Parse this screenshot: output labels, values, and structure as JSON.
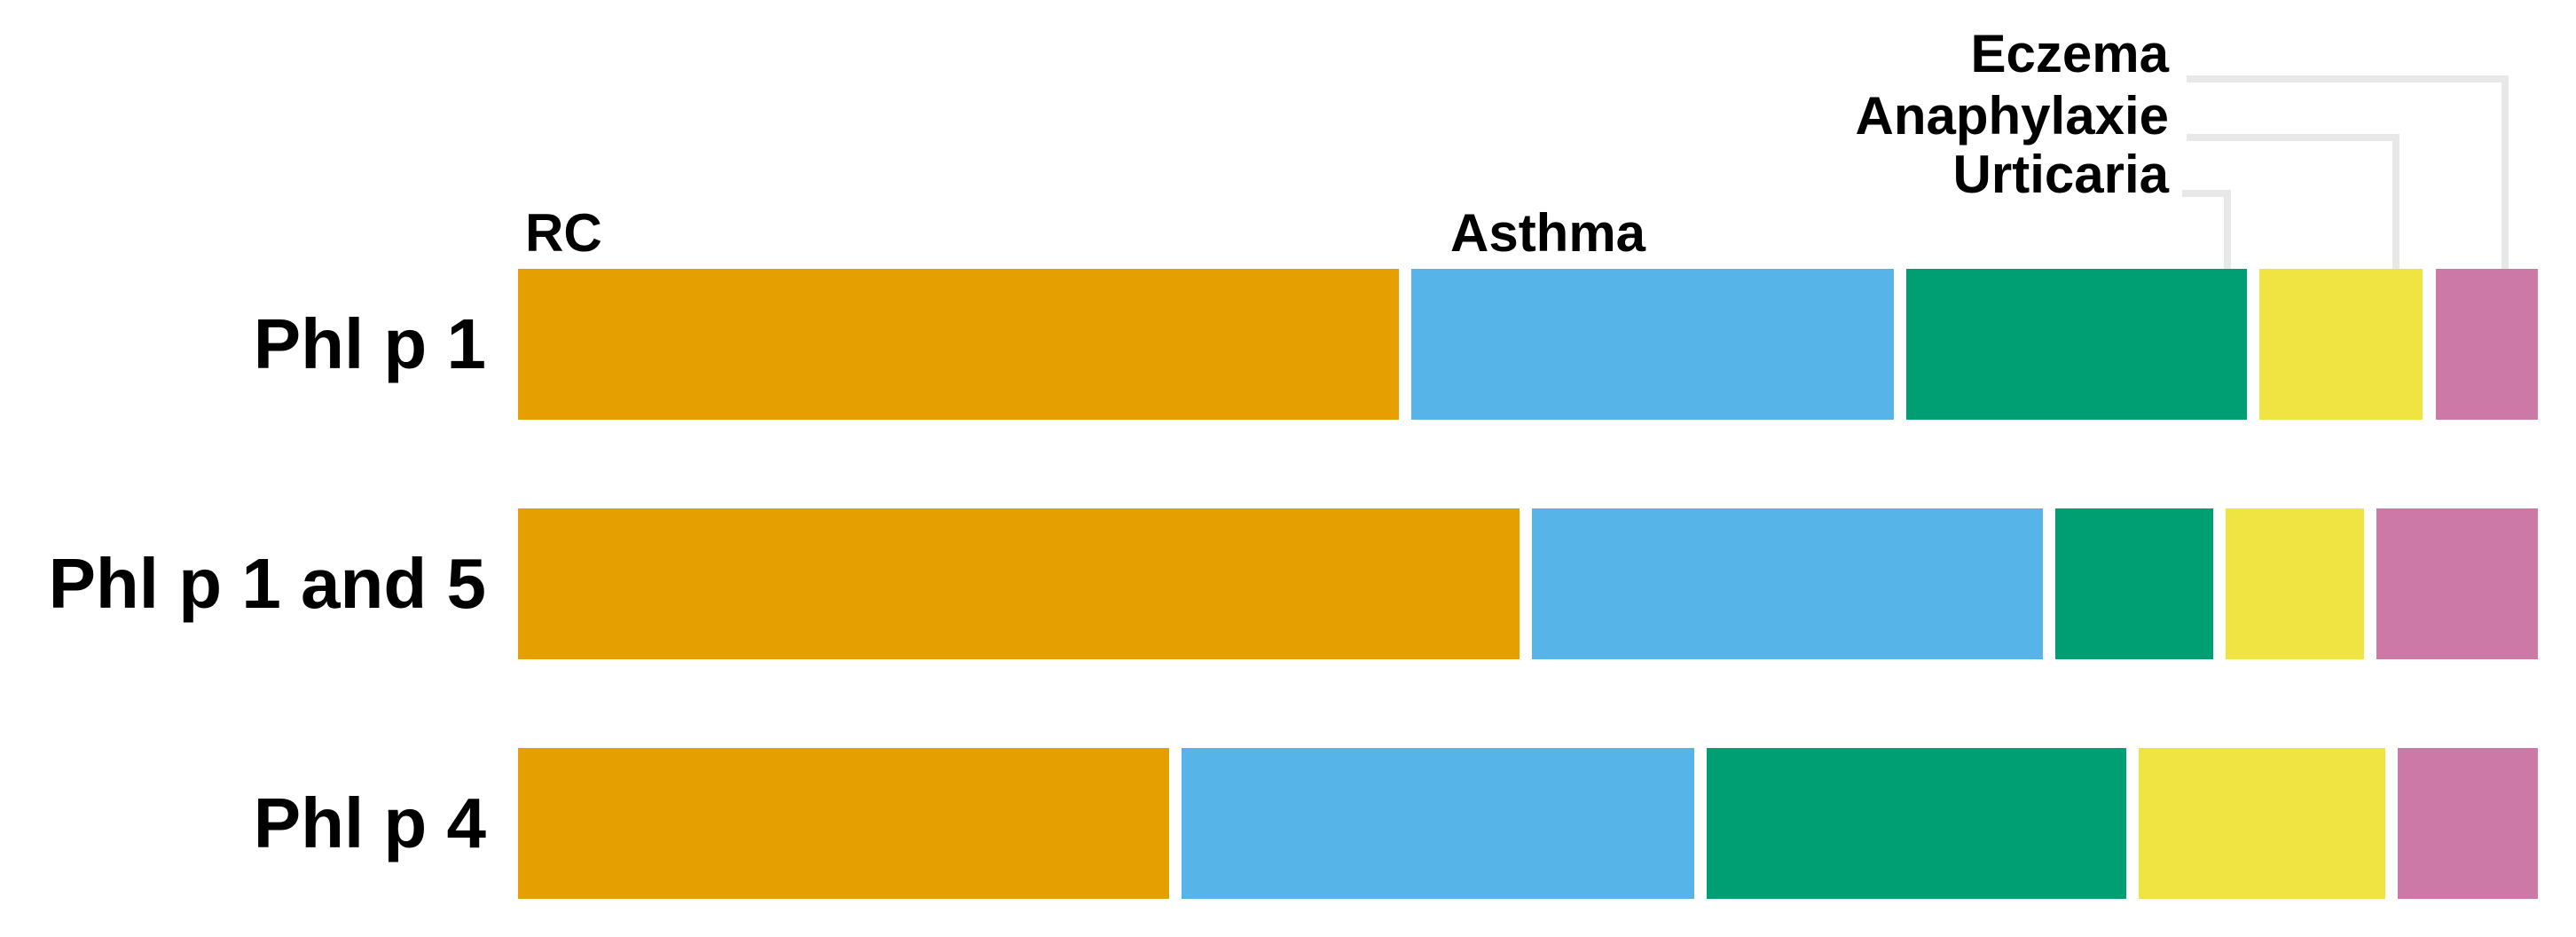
{
  "chart_data": {
    "type": "bar",
    "variant": "horizontal-stacked-percentage",
    "title": "",
    "xlabel": "",
    "ylabel": "",
    "categories": [
      "Phl p 1",
      "Phl p 1 and 5",
      "Phl p 4"
    ],
    "series": [
      {
        "name": "RC",
        "color": "#E69F00",
        "values": [
          44.7,
          50.8,
          33.0
        ]
      },
      {
        "name": "Asthma",
        "color": "#56B4E9",
        "values": [
          24.5,
          25.9,
          26.0
        ]
      },
      {
        "name": "Urticaria",
        "color": "#009E73",
        "values": [
          17.3,
          8.0,
          21.3
        ]
      },
      {
        "name": "Anaphylaxie",
        "color": "#F0E442",
        "values": [
          8.3,
          7.0,
          12.5
        ]
      },
      {
        "name": "Eczema",
        "color": "#CC79A7",
        "values": [
          5.2,
          8.2,
          7.1
        ]
      }
    ],
    "unit": "percent-of-row",
    "values_are_estimates": true,
    "inline_series_labels": [
      {
        "series": "RC",
        "text": "RC"
      },
      {
        "series": "Asthma",
        "text": "Asthma"
      }
    ],
    "callout_labels": [
      {
        "series": "Eczema",
        "text": "Eczema"
      },
      {
        "series": "Anaphylaxie",
        "text": "Anaphylaxie"
      },
      {
        "series": "Urticaria",
        "text": "Urticaria"
      }
    ],
    "legend_position": "top-right-callouts",
    "axes": {
      "x_visible": false,
      "y_visible": false
    },
    "grid": false,
    "background_color": "#FFFFFF",
    "text_color": "#000000",
    "leader_line_color": "#E8E8E8"
  }
}
